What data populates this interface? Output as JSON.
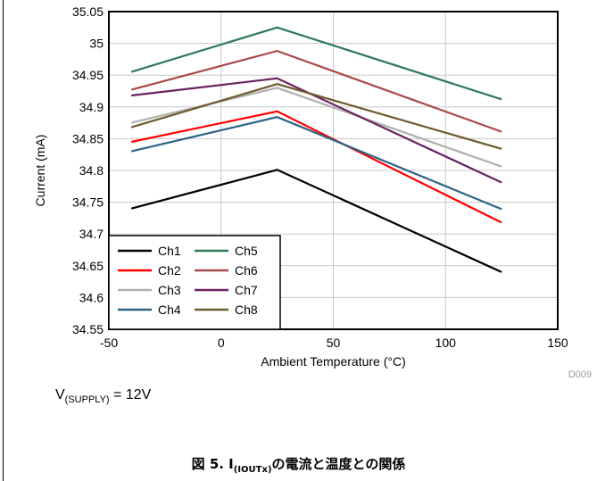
{
  "chart_data": {
    "type": "line",
    "xlabel": "Ambient Temperature (°C)",
    "ylabel": "Current (mA)",
    "xlim": [
      -50,
      150
    ],
    "ylim": [
      34.55,
      35.05
    ],
    "x_ticks": [
      "-50",
      "0",
      "50",
      "100",
      "150"
    ],
    "y_ticks": [
      "35.05",
      "35",
      "34.95",
      "34.9",
      "34.85",
      "34.8",
      "34.75",
      "34.7",
      "34.65",
      "34.6",
      "34.55"
    ],
    "grid": true,
    "legend_position": "bottom-left",
    "x": [
      -40,
      25,
      125
    ],
    "series": [
      {
        "name": "Ch1",
        "color": "#000000",
        "values": [
          34.74,
          34.801,
          34.64
        ]
      },
      {
        "name": "Ch2",
        "color": "#ff0000",
        "values": [
          34.845,
          34.893,
          34.718
        ]
      },
      {
        "name": "Ch3",
        "color": "#b0b0b0",
        "values": [
          34.875,
          34.93,
          34.806
        ]
      },
      {
        "name": "Ch4",
        "color": "#2e6385",
        "values": [
          34.83,
          34.884,
          34.739
        ]
      },
      {
        "name": "Ch5",
        "color": "#2e7a57",
        "values": [
          34.955,
          35.025,
          34.912
        ]
      },
      {
        "name": "Ch6",
        "color": "#a8484a",
        "values": [
          34.927,
          34.988,
          34.861
        ]
      },
      {
        "name": "Ch7",
        "color": "#6a2461",
        "values": [
          34.918,
          34.945,
          34.781
        ]
      },
      {
        "name": "Ch8",
        "color": "#6e5a2e",
        "values": [
          34.868,
          34.936,
          34.834
        ]
      }
    ]
  },
  "figure_code": "D009",
  "supply_note": {
    "prefix": "V",
    "subscript": "(SUPPLY)",
    "suffix": " = 12V"
  },
  "caption": {
    "prefix": "図 5. I",
    "subscript": "(IOUTx)",
    "suffix": "の電流と温度との関係"
  }
}
